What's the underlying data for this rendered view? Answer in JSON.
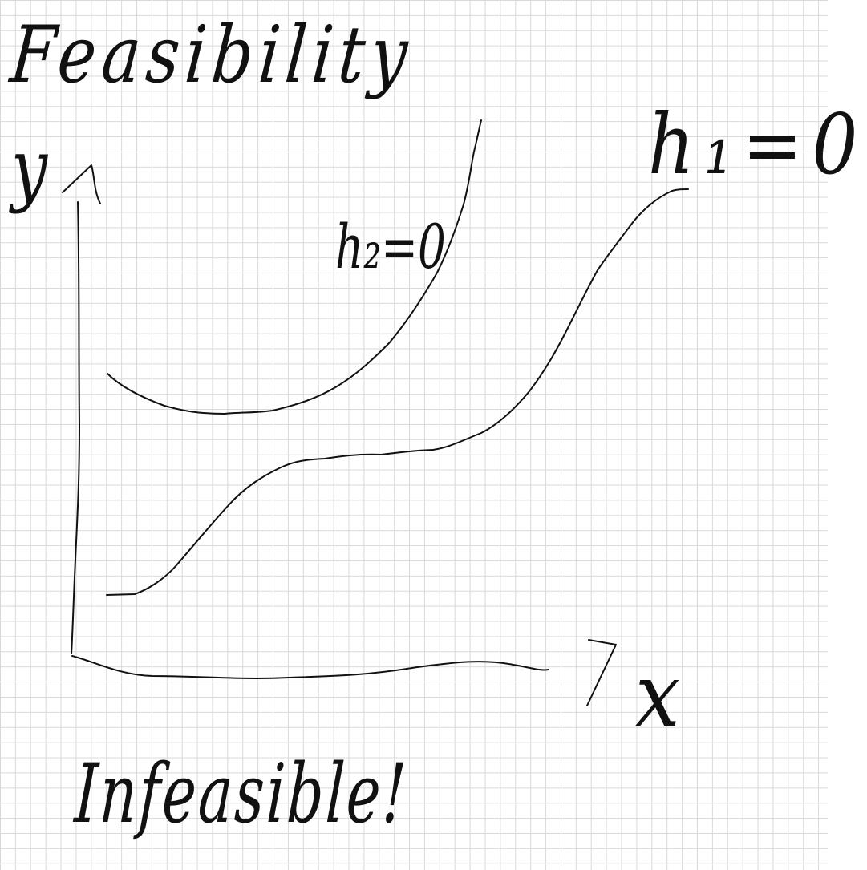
{
  "title": "Feasibility",
  "axes": {
    "y_label": "y",
    "x_label": "x"
  },
  "curves": {
    "h2": {
      "label": "h₂=0"
    },
    "h1": {
      "label": "h₁=0"
    }
  },
  "note": "Infeasible!",
  "colors": {
    "ink": "#111111",
    "grid": "#d9d9d9",
    "paper": "#ffffff"
  }
}
